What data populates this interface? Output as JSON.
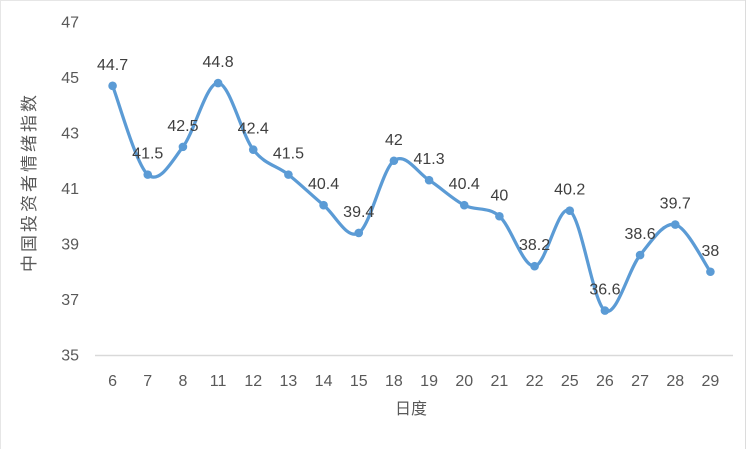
{
  "chart_data": {
    "type": "line",
    "title": "",
    "categories": [
      "6",
      "7",
      "8",
      "11",
      "12",
      "13",
      "14",
      "15",
      "18",
      "19",
      "20",
      "21",
      "22",
      "25",
      "26",
      "27",
      "28",
      "29"
    ],
    "values": [
      44.7,
      41.5,
      42.5,
      44.8,
      42.4,
      41.5,
      40.4,
      39.4,
      42,
      41.3,
      40.4,
      40,
      38.2,
      40.2,
      36.6,
      38.6,
      39.7,
      38
    ],
    "point_labels": [
      "44.7",
      "41.5",
      "42.5",
      "44.8",
      "42.4",
      "41.5",
      "40.4",
      "39.4",
      "42",
      "41.3",
      "40.4",
      "40",
      "38.2",
      "40.2",
      "36.6",
      "38.6",
      "39.7",
      "38"
    ],
    "xlabel": "日度",
    "ylabel": "中国投资者情绪指数",
    "ylim": [
      35,
      47
    ],
    "yticks": [
      "47",
      "45",
      "43",
      "41",
      "39",
      "37",
      "35"
    ],
    "ytick_values": [
      47,
      45,
      43,
      41,
      39,
      37,
      35
    ],
    "grid": false,
    "smooth": true,
    "legend": "none",
    "line_color": "#5b9bd5",
    "marker_color": "#5b9bd5",
    "axis_line_color": "#d9d9d9",
    "tick_label_color": "#595959",
    "data_label_color": "#3f3f3f"
  }
}
